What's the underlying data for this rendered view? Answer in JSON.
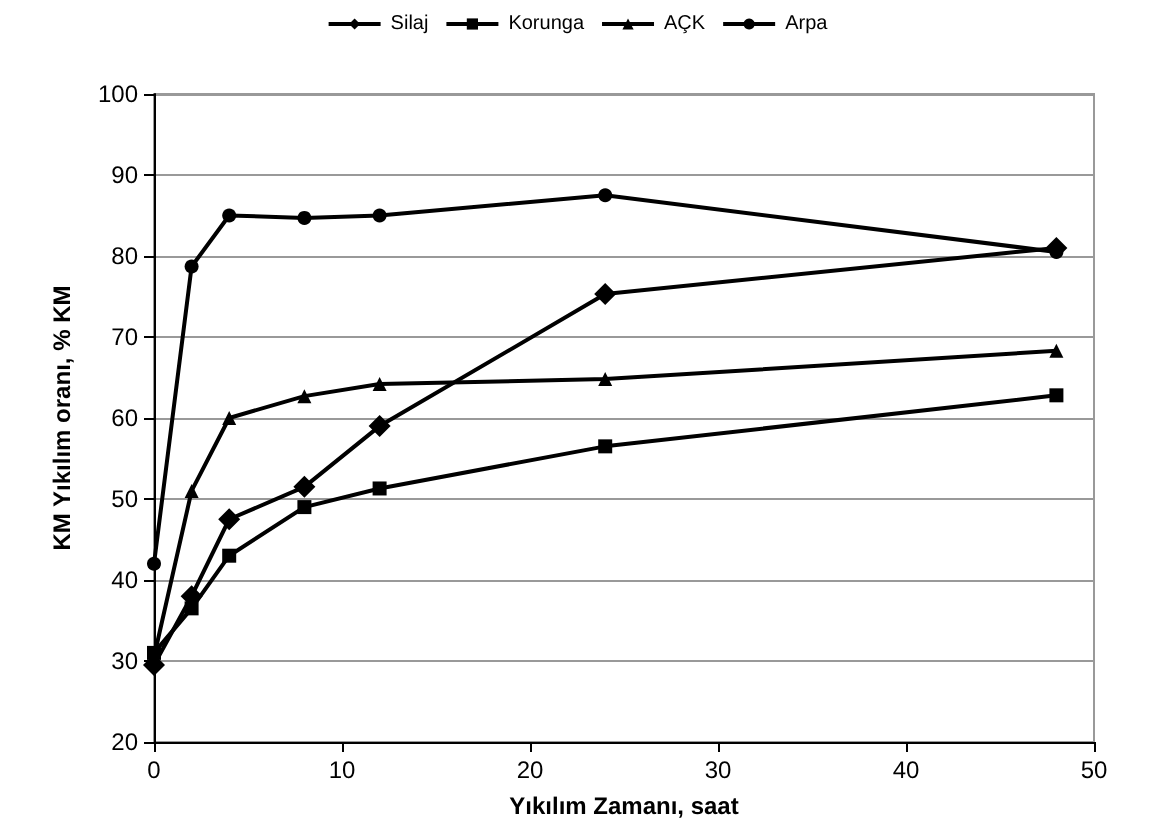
{
  "chart_data": {
    "type": "line",
    "xlabel": "Yıkılım Zamanı, saat",
    "ylabel": "KM Yıkılım oranı, % KM",
    "x": [
      0,
      2,
      4,
      8,
      12,
      24,
      48
    ],
    "series": [
      {
        "name": "Silaj",
        "color": "#000000",
        "marker": "diamond",
        "values": [
          29.5,
          38,
          47.5,
          51.5,
          59,
          75.3,
          81
        ]
      },
      {
        "name": "Korunga",
        "color": "#000000",
        "marker": "square",
        "values": [
          31,
          36.5,
          43,
          49,
          51.3,
          56.5,
          62.8
        ]
      },
      {
        "name": "AÇK",
        "color": "#000000",
        "marker": "triangle",
        "values": [
          30.5,
          51,
          60,
          62.7,
          64.2,
          64.8,
          68.3
        ]
      },
      {
        "name": "Arpa",
        "color": "#000000",
        "marker": "circle",
        "values": [
          42,
          78.7,
          85,
          84.7,
          85,
          87.5,
          80.5
        ]
      }
    ],
    "xlim": [
      0,
      50
    ],
    "xticks": [
      0,
      10,
      20,
      30,
      40,
      50
    ],
    "ylim": [
      20,
      100
    ],
    "yticks": [
      20,
      30,
      40,
      50,
      60,
      70,
      80,
      90,
      100
    ],
    "grid": "y",
    "legend": "top",
    "line_style": "solid"
  }
}
